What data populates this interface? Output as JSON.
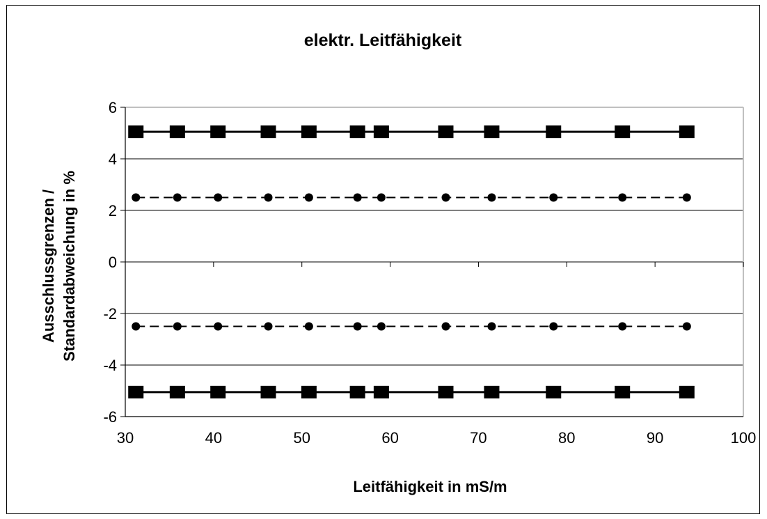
{
  "chart_data": {
    "type": "line",
    "title": "elektr. Leitfähigkeit",
    "xlabel": "Leitfähigkeit in mS/m",
    "ylabel_lines": [
      "Ausschlussgrenzen /",
      "Standardabweichung in %"
    ],
    "xlim": [
      30,
      100
    ],
    "ylim": [
      -6,
      6
    ],
    "xticks": [
      30,
      40,
      50,
      60,
      70,
      80,
      90,
      100
    ],
    "yticks": [
      -6,
      -4,
      -2,
      0,
      2,
      4,
      6
    ],
    "xtick_labels": [
      "30",
      "40",
      "50",
      "60",
      "70",
      "80",
      "90",
      "100"
    ],
    "ytick_labels": [
      "-6",
      "-4",
      "-2",
      "0",
      "2",
      "4",
      "6"
    ],
    "grid": "horizontal",
    "legend": "none",
    "x": [
      31.2,
      35.9,
      40.5,
      46.2,
      50.8,
      56.3,
      59.0,
      66.3,
      71.5,
      78.5,
      86.3,
      93.6
    ],
    "series": [
      {
        "marker": "square",
        "line": "solid",
        "color": "#000000",
        "values": [
          5.05,
          5.05,
          5.05,
          5.05,
          5.05,
          5.05,
          5.05,
          5.05,
          5.05,
          5.05,
          5.05,
          5.05
        ]
      },
      {
        "marker": "circle",
        "line": "dashed",
        "color": "#000000",
        "values": [
          2.5,
          2.5,
          2.5,
          2.5,
          2.5,
          2.5,
          2.5,
          2.5,
          2.5,
          2.5,
          2.5,
          2.5
        ]
      },
      {
        "marker": "circle",
        "line": "dashed",
        "color": "#000000",
        "values": [
          -2.5,
          -2.5,
          -2.5,
          -2.5,
          -2.5,
          -2.5,
          -2.5,
          -2.5,
          -2.5,
          -2.5,
          -2.5,
          -2.5
        ]
      },
      {
        "marker": "square",
        "line": "solid",
        "color": "#000000",
        "values": [
          -5.05,
          -5.05,
          -5.05,
          -5.05,
          -5.05,
          -5.05,
          -5.05,
          -5.05,
          -5.05,
          -5.05,
          -5.05,
          -5.05
        ]
      }
    ],
    "colors": {
      "gridline": "#000000",
      "plot_border": "#c0c0c0",
      "marker": "#000000"
    }
  }
}
